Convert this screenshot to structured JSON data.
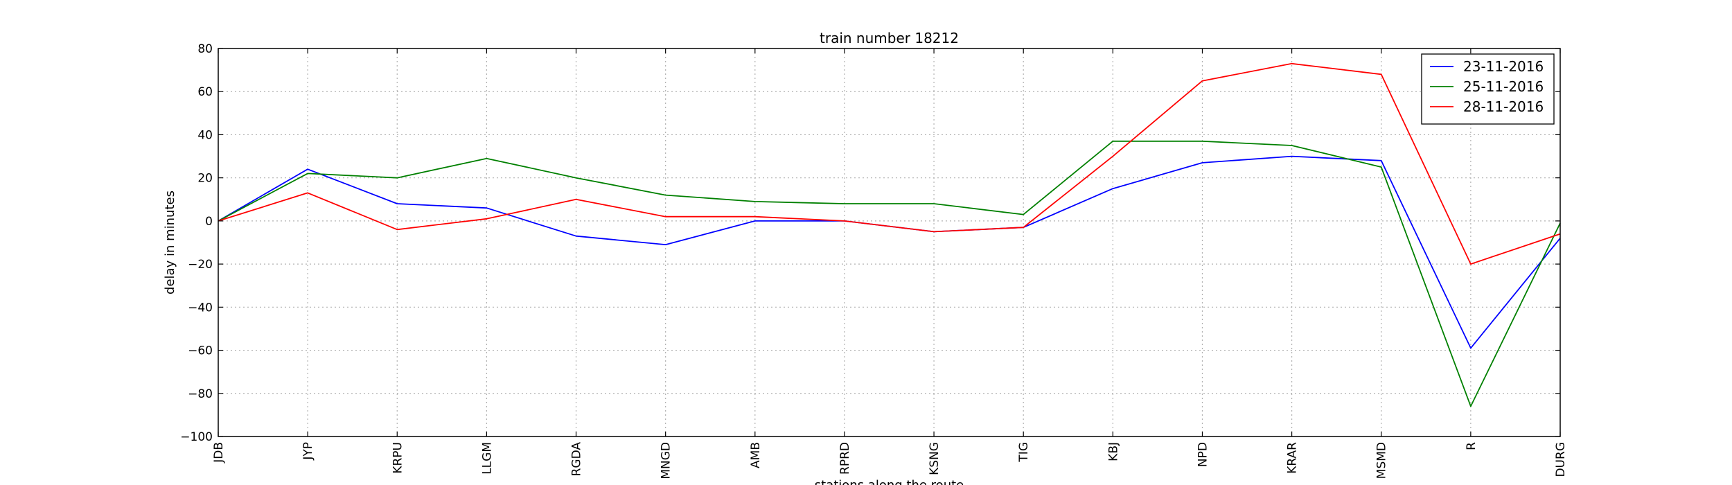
{
  "chart_data": {
    "type": "line",
    "title": "train number 18212",
    "xlabel": "stations along the route",
    "ylabel": "delay in minutes",
    "categories": [
      "JDB",
      "JYP",
      "KRPU",
      "LLGM",
      "RGDA",
      "MNGD",
      "AMB",
      "RPRD",
      "KSNG",
      "TIG",
      "KBJ",
      "NPD",
      "KRAR",
      "MSMD",
      "R",
      "DURG"
    ],
    "ylim": [
      -100,
      80
    ],
    "yticks": [
      -100,
      -80,
      -60,
      -40,
      -20,
      0,
      20,
      40,
      60,
      80
    ],
    "grid": true,
    "legend_position": "top-right",
    "series": [
      {
        "name": "23-11-2016",
        "color": "#0000ff",
        "values": [
          0,
          24,
          8,
          6,
          -7,
          -11,
          0,
          0,
          -5,
          -3,
          15,
          27,
          30,
          28,
          -59,
          -8
        ]
      },
      {
        "name": "25-11-2016",
        "color": "#008000",
        "values": [
          0,
          22,
          20,
          29,
          20,
          12,
          9,
          8,
          8,
          3,
          37,
          37,
          35,
          25,
          -86,
          -1
        ]
      },
      {
        "name": "28-11-2016",
        "color": "#ff0000",
        "values": [
          0,
          13,
          -4,
          1,
          10,
          2,
          2,
          0,
          -5,
          -3,
          30,
          65,
          73,
          68,
          -20,
          -6
        ]
      }
    ]
  }
}
